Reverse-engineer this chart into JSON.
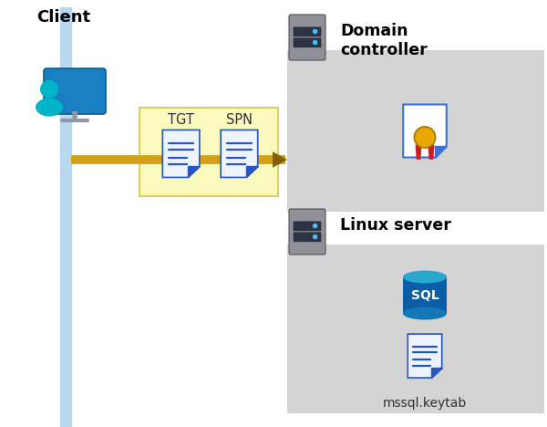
{
  "bg_color": "#ffffff",
  "client_label": "Client",
  "tgt_label": "TGT",
  "spn_label": "SPN",
  "dc_label": "Domain\ncontroller",
  "linux_label": "Linux server",
  "keytab_label": "mssql.keytab",
  "arrow_color": "#D4A017",
  "tgt_box_color": "#FAFABE",
  "tgt_box_edge": "#D8D060",
  "client_blue_dark": "#1A7FC1",
  "client_teal": "#00B4C8",
  "server_gray": "#909098",
  "server_dark": "#2C3444",
  "server_dot": "#40C0FF",
  "dc_box_color": "#D4D4D4",
  "linux_box_color": "#D4D4D4",
  "doc_page_color": "#EEF4FF",
  "doc_fold_color": "#2855C0",
  "doc_line_color": "#2855C0",
  "cert_fold_color": "#3A70D8",
  "cert_ribbon_gold": "#E8A800",
  "cert_ribbon_red": "#C82020",
  "sql_blue_dark": "#0A5EA8",
  "sql_blue_mid": "#1478B8",
  "sql_teal": "#28A8CC",
  "line_light_blue": "#B8D8F0"
}
